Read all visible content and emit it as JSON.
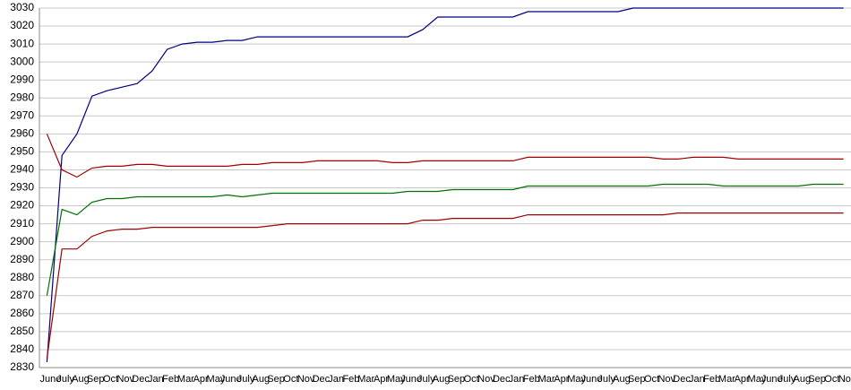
{
  "chart_data": {
    "type": "line",
    "categories": [
      "June",
      "July",
      "Aug",
      "Sep",
      "Oct",
      "Nov",
      "Dec",
      "Jan",
      "Feb",
      "Mar",
      "Apr",
      "May",
      "June",
      "July",
      "Aug",
      "Sep",
      "Oct",
      "Nov",
      "Dec",
      "Jan",
      "Feb",
      "Mar",
      "Apr",
      "May",
      "June",
      "July",
      "Aug",
      "Sep",
      "Oct",
      "Nov",
      "Dec",
      "Jan",
      "Feb",
      "Mar",
      "Apr",
      "May",
      "June",
      "July",
      "Aug",
      "Sep",
      "Oct",
      "Nov",
      "Dec",
      "Jan",
      "Feb",
      "Mar",
      "Apr",
      "May",
      "June",
      "July",
      "Aug",
      "Sep",
      "Oct",
      "Nov"
    ],
    "series": [
      {
        "color": "#000080",
        "values": [
          2833,
          2948,
          2960,
          2981,
          2984,
          2986,
          2988,
          2995,
          3007,
          3010,
          3011,
          3011,
          3012,
          3012,
          3014,
          3014,
          3014,
          3014,
          3014,
          3014,
          3014,
          3014,
          3014,
          3014,
          3014,
          3018,
          3025,
          3025,
          3025,
          3025,
          3025,
          3025,
          3028,
          3028,
          3028,
          3028,
          3028,
          3028,
          3028,
          3030,
          3030,
          3030,
          3030,
          3030,
          3030,
          3030,
          3030,
          3030,
          3030,
          3030,
          3030,
          3030,
          3030,
          3030
        ]
      },
      {
        "color": "#a00000",
        "values": [
          2960,
          2940,
          2936,
          2941,
          2942,
          2942,
          2943,
          2943,
          2942,
          2942,
          2942,
          2942,
          2942,
          2943,
          2943,
          2944,
          2944,
          2944,
          2945,
          2945,
          2945,
          2945,
          2945,
          2944,
          2944,
          2945,
          2945,
          2945,
          2945,
          2945,
          2945,
          2945,
          2947,
          2947,
          2947,
          2947,
          2947,
          2947,
          2947,
          2947,
          2947,
          2946,
          2946,
          2947,
          2947,
          2947,
          2946,
          2946,
          2946,
          2946,
          2946,
          2946,
          2946,
          2946
        ]
      },
      {
        "color": "#007000",
        "values": [
          2870,
          2918,
          2915,
          2922,
          2924,
          2924,
          2925,
          2925,
          2925,
          2925,
          2925,
          2925,
          2926,
          2925,
          2926,
          2927,
          2927,
          2927,
          2927,
          2927,
          2927,
          2927,
          2927,
          2927,
          2928,
          2928,
          2928,
          2929,
          2929,
          2929,
          2929,
          2929,
          2931,
          2931,
          2931,
          2931,
          2931,
          2931,
          2931,
          2931,
          2931,
          2932,
          2932,
          2932,
          2932,
          2931,
          2931,
          2931,
          2931,
          2931,
          2931,
          2932,
          2932,
          2932
        ]
      },
      {
        "color": "#a00000",
        "values": [
          2835,
          2896,
          2896,
          2903,
          2906,
          2907,
          2907,
          2908,
          2908,
          2908,
          2908,
          2908,
          2908,
          2908,
          2908,
          2909,
          2910,
          2910,
          2910,
          2910,
          2910,
          2910,
          2910,
          2910,
          2910,
          2912,
          2912,
          2913,
          2913,
          2913,
          2913,
          2913,
          2915,
          2915,
          2915,
          2915,
          2915,
          2915,
          2915,
          2915,
          2915,
          2915,
          2916,
          2916,
          2916,
          2916,
          2916,
          2916,
          2916,
          2916,
          2916,
          2916,
          2916,
          2916
        ]
      }
    ],
    "ylim": [
      2830,
      3030
    ],
    "yticks": [
      2830,
      2840,
      2850,
      2860,
      2870,
      2880,
      2890,
      2900,
      2910,
      2920,
      2930,
      2940,
      2950,
      2960,
      2970,
      2980,
      2990,
      3000,
      3010,
      3020,
      3030
    ],
    "grid": true
  }
}
